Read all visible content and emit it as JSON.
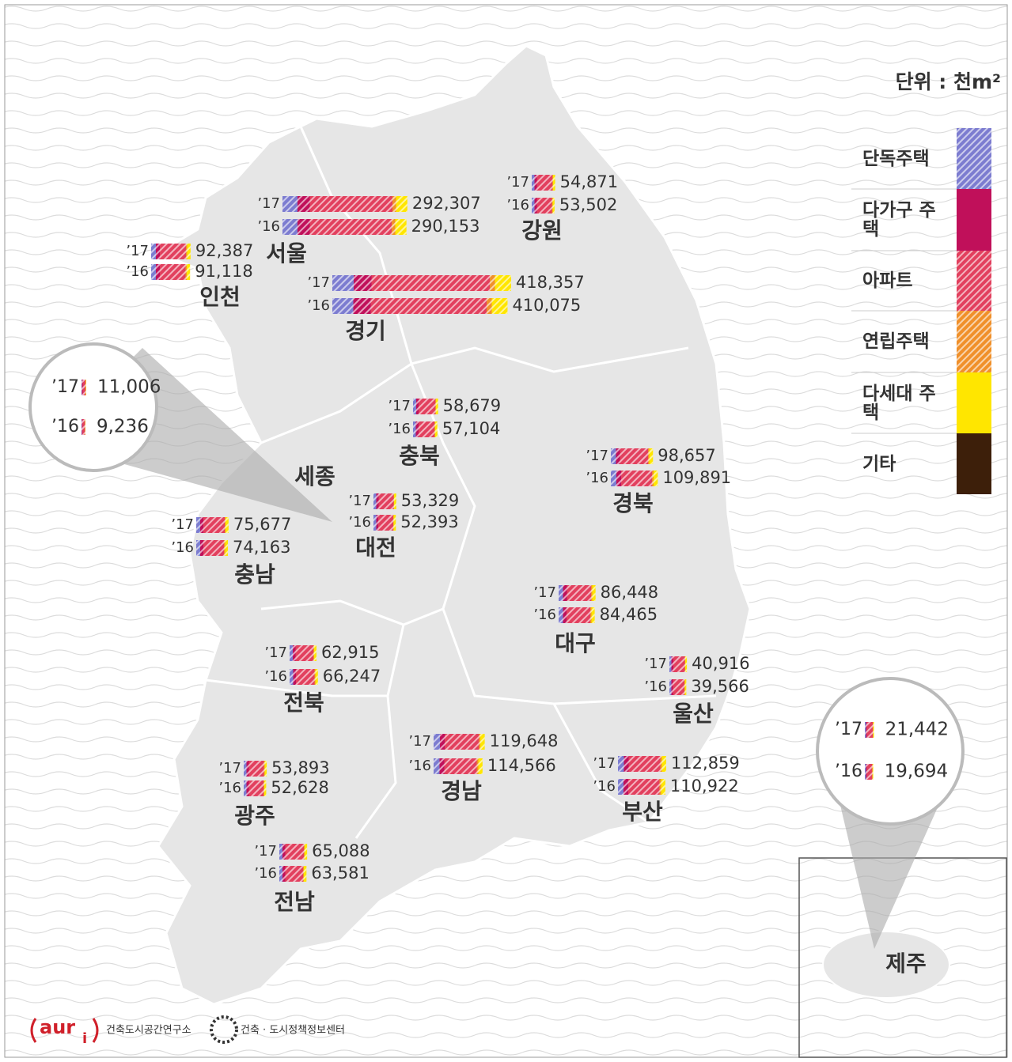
{
  "unit_label": "단위 : 천m²",
  "years": [
    "’17",
    "’16"
  ],
  "legend": [
    {
      "name": "단독주택",
      "color": "#7c7cd0"
    },
    {
      "name": "다가구 주택",
      "color": "#c0105a"
    },
    {
      "name": "아파트",
      "color": "#e2405e"
    },
    {
      "name": "연립주택",
      "color": "#f0902a"
    },
    {
      "name": "다세대 주택",
      "color": "#ffe600"
    },
    {
      "name": "기타",
      "color": "#3d1f0a"
    }
  ],
  "regions": [
    {
      "name": "서울",
      "values": [
        292307,
        290153
      ],
      "value_labels": [
        "292,307",
        "290,153"
      ]
    },
    {
      "name": "강원",
      "values": [
        54871,
        53502
      ],
      "value_labels": [
        "54,871",
        "53,502"
      ]
    },
    {
      "name": "인천",
      "values": [
        92387,
        91118
      ],
      "value_labels": [
        "92,387",
        "91,118"
      ]
    },
    {
      "name": "경기",
      "values": [
        418357,
        410075
      ],
      "value_labels": [
        "418,357",
        "410,075"
      ]
    },
    {
      "name": "세종",
      "values": [
        11006,
        9236
      ],
      "value_labels": [
        "11,006",
        "9,236"
      ]
    },
    {
      "name": "충북",
      "values": [
        58679,
        57104
      ],
      "value_labels": [
        "58,679",
        "57,104"
      ]
    },
    {
      "name": "경북",
      "values": [
        98657,
        109891
      ],
      "value_labels": [
        "98,657",
        "109,891"
      ]
    },
    {
      "name": "대전",
      "values": [
        53329,
        52393
      ],
      "value_labels": [
        "53,329",
        "52,393"
      ]
    },
    {
      "name": "충남",
      "values": [
        75677,
        74163
      ],
      "value_labels": [
        "75,677",
        "74,163"
      ]
    },
    {
      "name": "대구",
      "values": [
        86448,
        84465
      ],
      "value_labels": [
        "86,448",
        "84,465"
      ]
    },
    {
      "name": "전북",
      "values": [
        62915,
        66247
      ],
      "value_labels": [
        "62,915",
        "66,247"
      ]
    },
    {
      "name": "울산",
      "values": [
        40916,
        39566
      ],
      "value_labels": [
        "40,916",
        "39,566"
      ]
    },
    {
      "name": "경남",
      "values": [
        119648,
        114566
      ],
      "value_labels": [
        "119,648",
        "114,566"
      ]
    },
    {
      "name": "부산",
      "values": [
        112859,
        110922
      ],
      "value_labels": [
        "112,859",
        "110,922"
      ]
    },
    {
      "name": "광주",
      "values": [
        53893,
        52628
      ],
      "value_labels": [
        "53,893",
        "52,628"
      ]
    },
    {
      "name": "전남",
      "values": [
        65088,
        63581
      ],
      "value_labels": [
        "65,088",
        "63,581"
      ]
    },
    {
      "name": "제주",
      "values": [
        21442,
        19694
      ],
      "value_labels": [
        "21,442",
        "19,694"
      ]
    }
  ],
  "footer": {
    "logo": "aur",
    "logo_sub": "i",
    "org": "건축도시공간연구소",
    "center": "건축 · 도시정책정보센터"
  }
}
